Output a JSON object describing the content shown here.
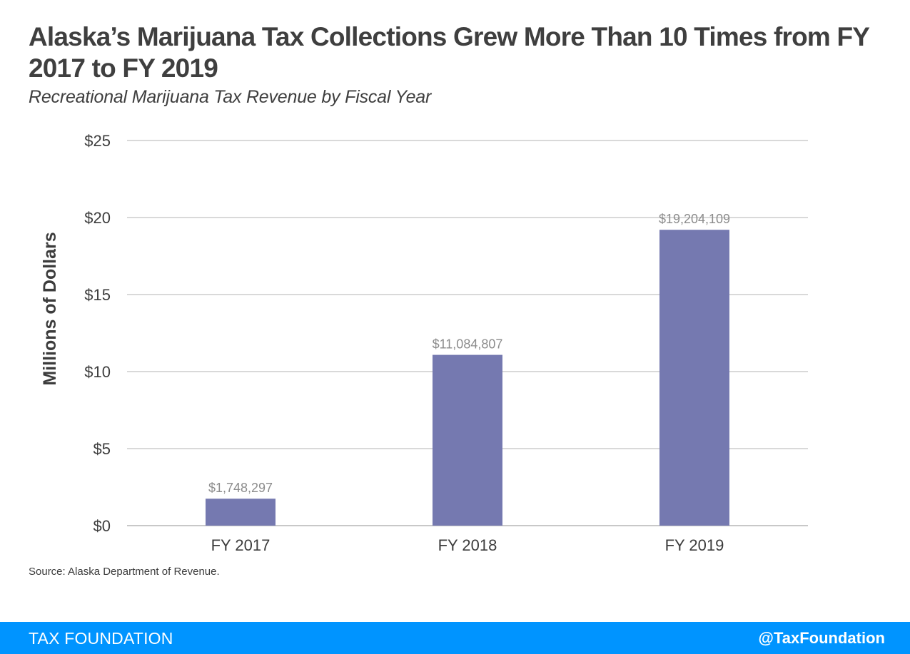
{
  "header": {
    "title": "Alaska’s Marijuana Tax Collections Grew More Than 10 Times from FY 2017 to FY 2019",
    "subtitle": "Recreational Marijuana Tax Revenue by Fiscal Year"
  },
  "chart_data": {
    "type": "bar",
    "categories": [
      "FY 2017",
      "FY 2018",
      "FY 2019"
    ],
    "values": [
      1748297,
      11084807,
      19204109
    ],
    "data_labels": [
      "$1,748,297",
      "$11,084,807",
      "$19,204,109"
    ],
    "ylabel": "Millions of Dollars",
    "xlabel": "",
    "ylim": [
      0,
      25
    ],
    "yunit_divisor": 1000000,
    "yticks": [
      0,
      5,
      10,
      15,
      20,
      25
    ],
    "ytick_labels": [
      "$0",
      "$5",
      "$10",
      "$15",
      "$20",
      "$25"
    ],
    "grid": true,
    "bar_color": "#7579b0"
  },
  "source": "Source: Alaska Department of Revenue.",
  "footer": {
    "brand": "TAX FOUNDATION",
    "handle": "@TaxFoundation",
    "color": "#0094ff"
  }
}
